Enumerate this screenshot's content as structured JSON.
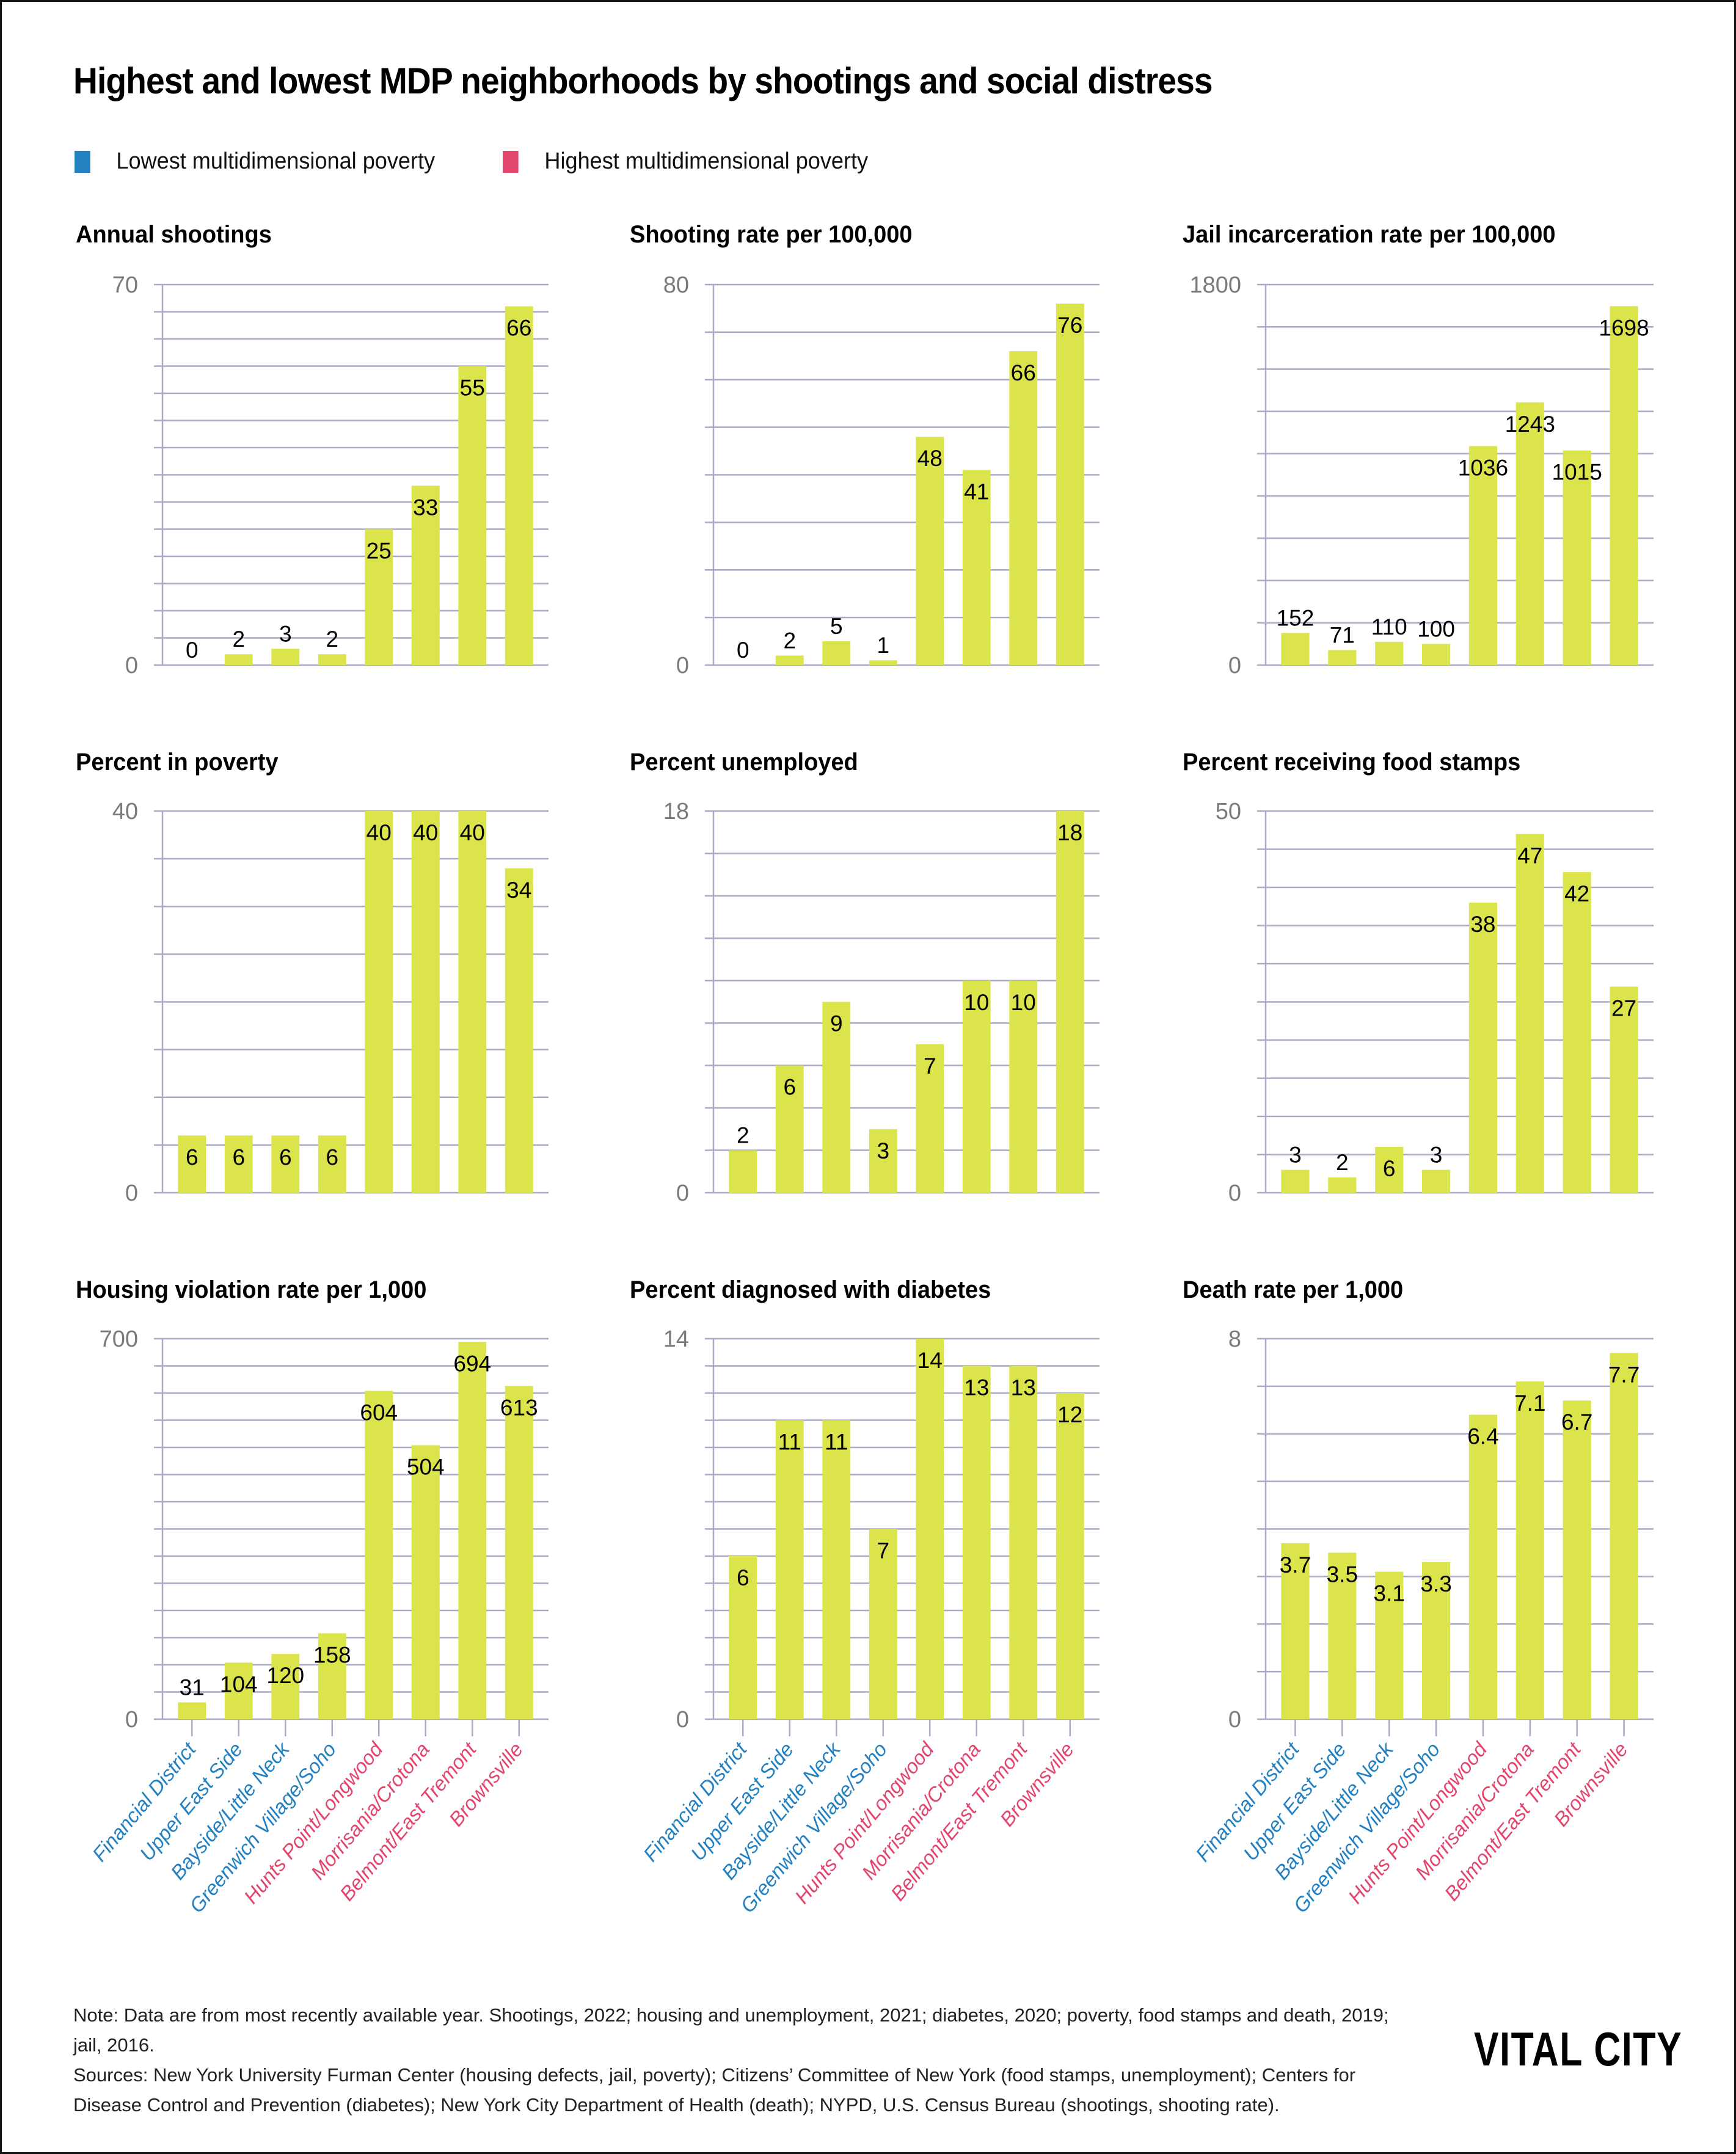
{
  "title": "Highest and lowest MDP neighborhoods by shootings and social distress",
  "legend": [
    {
      "label": "Lowest multidimensional poverty",
      "color": "#2380c1"
    },
    {
      "label": "Highest multidimensional poverty",
      "color": "#e2466c"
    }
  ],
  "colors": {
    "bar": "#dce44c",
    "grid": "#a9abc4",
    "tick_label": "#7a7a7a",
    "low_group": "#2380c1",
    "high_group": "#e2466c"
  },
  "neighborhoods": [
    {
      "name": "Financial District",
      "group": "low"
    },
    {
      "name": "Upper East Side",
      "group": "low"
    },
    {
      "name": "Bayside/Little Neck",
      "group": "low"
    },
    {
      "name": "Greenwich Village/Soho",
      "group": "low"
    },
    {
      "name": "Hunts Point/Longwood",
      "group": "high"
    },
    {
      "name": "Morrisania/Crotona",
      "group": "high"
    },
    {
      "name": "Belmont/East Tremont",
      "group": "high"
    },
    {
      "name": "Brownsville",
      "group": "high"
    }
  ],
  "chart_data": [
    {
      "type": "bar",
      "title": "Annual shootings",
      "categories": [
        "Financial District",
        "Upper East Side",
        "Bayside/Little Neck",
        "Greenwich Village/Soho",
        "Hunts Point/Longwood",
        "Morrisania/Crotona",
        "Belmont/East Tremont",
        "Brownsville"
      ],
      "values": [
        0,
        2,
        3,
        2,
        25,
        33,
        55,
        66
      ],
      "labels": [
        "0",
        "2",
        "3",
        "2",
        "25",
        "33",
        "55",
        "66"
      ],
      "ylim": [
        0,
        70
      ],
      "yticks": [
        "0",
        "70"
      ],
      "grid_step": 5,
      "grid": true,
      "xlabel": "",
      "ylabel": ""
    },
    {
      "type": "bar",
      "title": "Shooting rate per 100,000",
      "categories": [
        "Financial District",
        "Upper East Side",
        "Bayside/Little Neck",
        "Greenwich Village/Soho",
        "Hunts Point/Longwood",
        "Morrisania/Crotona",
        "Belmont/East Tremont",
        "Brownsville"
      ],
      "values": [
        0,
        2,
        5,
        1,
        48,
        41,
        66,
        76
      ],
      "labels": [
        "0",
        "2",
        "5",
        "1",
        "48",
        "41",
        "66",
        "76"
      ],
      "ylim": [
        0,
        80
      ],
      "yticks": [
        "0",
        "80"
      ],
      "grid_step": 10,
      "grid": true,
      "xlabel": "",
      "ylabel": ""
    },
    {
      "type": "bar",
      "title": "Jail incarceration rate per 100,000",
      "categories": [
        "Financial District",
        "Upper East Side",
        "Bayside/Little Neck",
        "Greenwich Village/Soho",
        "Hunts Point/Longwood",
        "Morrisania/Crotona",
        "Belmont/East Tremont",
        "Brownsville"
      ],
      "values": [
        152,
        71,
        110,
        100,
        1036,
        1243,
        1015,
        1698
      ],
      "labels": [
        "152",
        "71",
        "110",
        "100",
        "1036",
        "1243",
        "1015",
        "1698"
      ],
      "ylim": [
        0,
        1800
      ],
      "yticks": [
        "0",
        "1800"
      ],
      "grid_step": 200,
      "grid": true,
      "xlabel": "",
      "ylabel": ""
    },
    {
      "type": "bar",
      "title": "Percent in poverty",
      "categories": [
        "Financial District",
        "Upper East Side",
        "Bayside/Little Neck",
        "Greenwich Village/Soho",
        "Hunts Point/Longwood",
        "Morrisania/Crotona",
        "Belmont/East Tremont",
        "Brownsville"
      ],
      "values": [
        6,
        6,
        6,
        6,
        40,
        40,
        40,
        34
      ],
      "labels": [
        "6",
        "6",
        "6",
        "6",
        "40",
        "40",
        "40",
        "34"
      ],
      "ylim": [
        0,
        40
      ],
      "yticks": [
        "0",
        "40"
      ],
      "grid_step": 5,
      "grid": true,
      "xlabel": "",
      "ylabel": ""
    },
    {
      "type": "bar",
      "title": "Percent unemployed",
      "categories": [
        "Financial District",
        "Upper East Side",
        "Bayside/Little Neck",
        "Greenwich Village/Soho",
        "Hunts Point/Longwood",
        "Morrisania/Crotona",
        "Belmont/East Tremont",
        "Brownsville"
      ],
      "values": [
        2,
        6,
        9,
        3,
        7,
        10,
        10,
        18
      ],
      "labels": [
        "2",
        "6",
        "9",
        "3",
        "7",
        "10",
        "10",
        "18"
      ],
      "ylim": [
        0,
        18
      ],
      "yticks": [
        "0",
        "18"
      ],
      "grid_step": 2,
      "grid": true,
      "xlabel": "",
      "ylabel": ""
    },
    {
      "type": "bar",
      "title": "Percent receiving food stamps",
      "categories": [
        "Financial District",
        "Upper East Side",
        "Bayside/Little Neck",
        "Greenwich Village/Soho",
        "Hunts Point/Longwood",
        "Morrisania/Crotona",
        "Belmont/East Tremont",
        "Brownsville"
      ],
      "values": [
        3,
        2,
        6,
        3,
        38,
        47,
        42,
        27
      ],
      "labels": [
        "3",
        "2",
        "6",
        "3",
        "38",
        "47",
        "42",
        "27"
      ],
      "ylim": [
        0,
        50
      ],
      "yticks": [
        "0",
        "50"
      ],
      "grid_step": 5,
      "grid": true,
      "xlabel": "",
      "ylabel": ""
    },
    {
      "type": "bar",
      "title": "Housing violation rate per 1,000",
      "categories": [
        "Financial District",
        "Upper East Side",
        "Bayside/Little Neck",
        "Greenwich Village/Soho",
        "Hunts Point/Longwood",
        "Morrisania/Crotona",
        "Belmont/East Tremont",
        "Brownsville"
      ],
      "values": [
        31,
        104,
        120,
        158,
        604,
        504,
        694,
        613
      ],
      "labels": [
        "31",
        "104",
        "120",
        "158",
        "604",
        "504",
        "694",
        "613"
      ],
      "ylim": [
        0,
        700
      ],
      "yticks": [
        "0",
        "700"
      ],
      "grid_step": 50,
      "grid": true,
      "xlabel": "",
      "ylabel": "",
      "show_category_labels": true
    },
    {
      "type": "bar",
      "title": "Percent diagnosed with diabetes",
      "categories": [
        "Financial District",
        "Upper East Side",
        "Bayside/Little Neck",
        "Greenwich Village/Soho",
        "Hunts Point/Longwood",
        "Morrisania/Crotona",
        "Belmont/East Tremont",
        "Brownsville"
      ],
      "values": [
        6,
        11,
        11,
        7,
        14,
        13,
        13,
        12
      ],
      "labels": [
        "6",
        "11",
        "11",
        "7",
        "14",
        "13",
        "13",
        "12"
      ],
      "ylim": [
        0,
        14
      ],
      "yticks": [
        "0",
        "14"
      ],
      "grid_step": 1,
      "grid": true,
      "xlabel": "",
      "ylabel": "",
      "show_category_labels": true
    },
    {
      "type": "bar",
      "title": "Death rate per 1,000",
      "categories": [
        "Financial District",
        "Upper East Side",
        "Bayside/Little Neck",
        "Greenwich Village/Soho",
        "Hunts Point/Longwood",
        "Morrisania/Crotona",
        "Belmont/East Tremont",
        "Brownsville"
      ],
      "values": [
        3.7,
        3.5,
        3.1,
        3.3,
        6.4,
        7.1,
        6.7,
        7.7
      ],
      "labels": [
        "3.7",
        "3.5",
        "3.1",
        "3.3",
        "6.4",
        "7.1",
        "6.7",
        "7.7"
      ],
      "ylim": [
        0,
        8
      ],
      "yticks": [
        "0",
        "8"
      ],
      "grid_step": 1,
      "grid": true,
      "xlabel": "",
      "ylabel": "",
      "show_category_labels": true
    }
  ],
  "footer": {
    "note": "Note: Data are from most recently available year. Shootings, 2022; housing and unemployment, 2021; diabetes, 2020; poverty, food stamps and death, 2019; jail, 2016.",
    "sources": "Sources: New York University Furman Center (housing defects, jail, poverty); Citizens’ Committee of New York (food stamps, unemployment); Centers for Disease Control and Prevention (diabetes); New York City Department of Health (death); NYPD, U.S. Census Bureau (shootings, shooting rate).",
    "logo": "VITAL CITY"
  }
}
